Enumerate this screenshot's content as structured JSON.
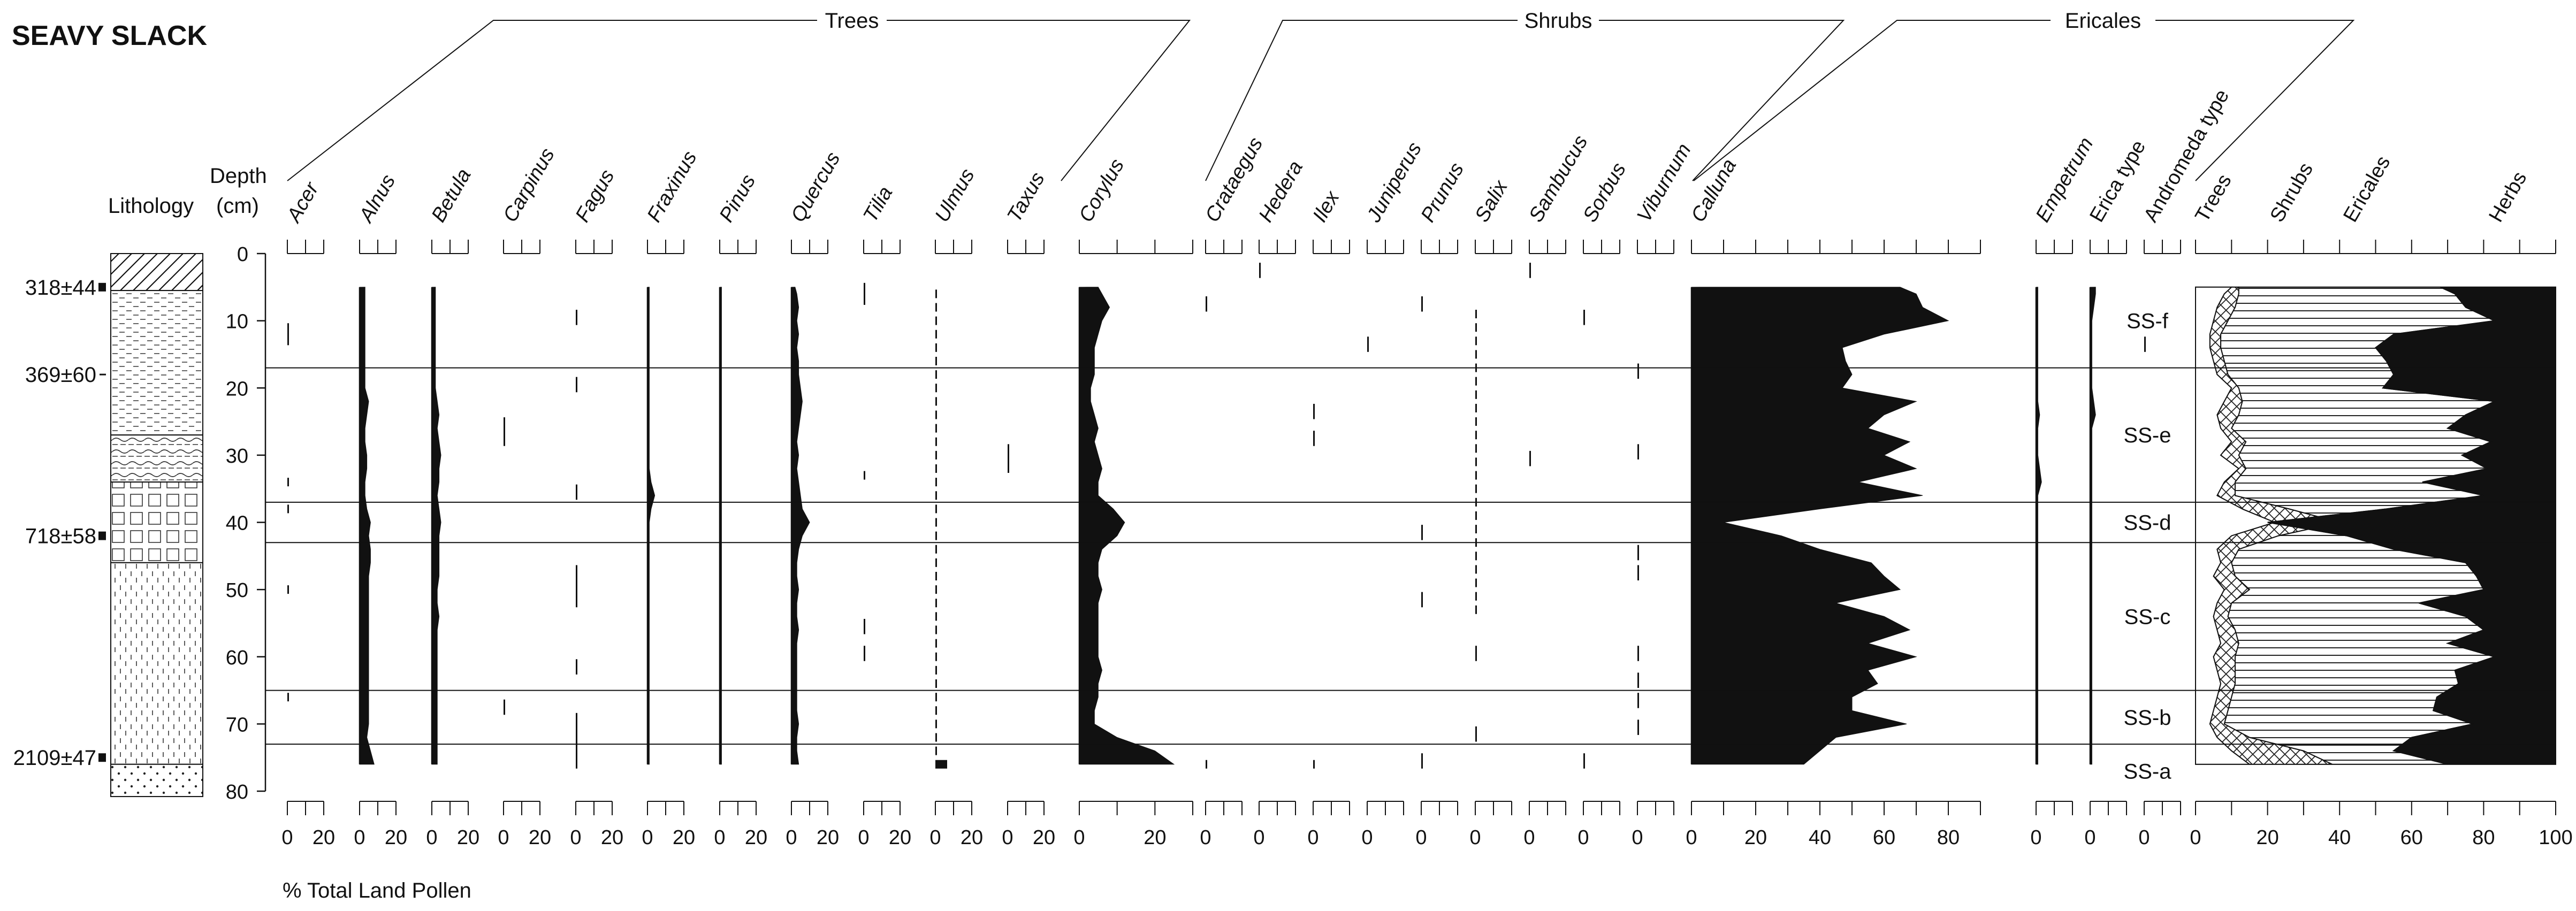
{
  "chart_data": {
    "type": "area",
    "title": "SEAVY SLACK",
    "ylabel": "Depth (cm)",
    "xlabel": "% Total Land Pollen",
    "ylim": [
      0,
      80
    ],
    "depth_ticks": [
      "0",
      "10",
      "20",
      "30",
      "40",
      "50",
      "60",
      "70",
      "80"
    ],
    "lithology_label": "Lithology",
    "depth_label_1": "Depth",
    "depth_label_2": "(cm)",
    "dates": [
      {
        "label": "318±44",
        "depth": 5
      },
      {
        "label": "369±60",
        "depth": 18
      },
      {
        "label": "718±58",
        "depth": 42
      },
      {
        "label": "2109±47",
        "depth": 75
      }
    ],
    "groups": [
      "Trees",
      "Shrubs",
      "Ericales"
    ],
    "zone_boundaries": [
      17,
      37,
      43,
      65,
      73
    ],
    "zones": [
      {
        "label": "SS-f",
        "depth": 10
      },
      {
        "label": "SS-e",
        "depth": 27
      },
      {
        "label": "SS-d",
        "depth": 40
      },
      {
        "label": "SS-c",
        "depth": 54
      },
      {
        "label": "SS-b",
        "depth": 69
      },
      {
        "label": "SS-a",
        "depth": 77
      }
    ],
    "depths": [
      5,
      6,
      8,
      10,
      12,
      14,
      16,
      18,
      20,
      22,
      24,
      26,
      28,
      30,
      32,
      34,
      36,
      38,
      40,
      42,
      44,
      46,
      48,
      50,
      52,
      54,
      56,
      58,
      60,
      62,
      64,
      66,
      68,
      70,
      72,
      74,
      76
    ],
    "taxa": [
      {
        "name": "Acer",
        "type": "dots",
        "points": [
          [
            11,
            1
          ],
          [
            12,
            1
          ],
          [
            13,
            1
          ],
          [
            34,
            1
          ],
          [
            38,
            1
          ],
          [
            50,
            1
          ],
          [
            66,
            1
          ]
        ]
      },
      {
        "name": "Alnus",
        "type": "curve",
        "values": [
          3,
          3,
          3,
          3,
          3,
          3,
          3,
          3,
          3,
          5,
          4,
          3,
          3,
          4,
          4,
          3,
          3,
          4,
          6,
          5,
          6,
          6,
          5,
          5,
          5,
          5,
          5,
          5,
          5,
          5,
          5,
          5,
          5,
          5,
          4,
          6,
          8
        ]
      },
      {
        "name": "Betula",
        "type": "curve",
        "values": [
          2,
          2,
          2,
          2,
          2,
          2,
          2,
          2,
          2,
          3,
          4,
          3,
          4,
          5,
          4,
          4,
          3,
          4,
          5,
          4,
          4,
          4,
          4,
          3,
          3,
          4,
          3,
          3,
          3,
          3,
          3,
          3,
          3,
          3,
          3,
          3,
          3
        ]
      },
      {
        "name": "Carpinus",
        "type": "dots",
        "points": [
          [
            25,
            1
          ],
          [
            26,
            1
          ],
          [
            27,
            1
          ],
          [
            28,
            1
          ],
          [
            67,
            1
          ],
          [
            68,
            1
          ]
        ]
      },
      {
        "name": "Fagus",
        "type": "dots",
        "points": [
          [
            9,
            1
          ],
          [
            10,
            1
          ],
          [
            19,
            1
          ],
          [
            20,
            1
          ],
          [
            35,
            1
          ],
          [
            36,
            1
          ],
          [
            47,
            1
          ],
          [
            48,
            1
          ],
          [
            49,
            1
          ],
          [
            50,
            1
          ],
          [
            51,
            1
          ],
          [
            52,
            1
          ],
          [
            61,
            1
          ],
          [
            62,
            1
          ],
          [
            69,
            1
          ],
          [
            70,
            1
          ],
          [
            71,
            1
          ],
          [
            72,
            1
          ],
          [
            73,
            1
          ],
          [
            74,
            1
          ],
          [
            75,
            1
          ],
          [
            76,
            1
          ]
        ]
      },
      {
        "name": "Fraxinus",
        "type": "curve",
        "values": [
          1,
          1,
          1,
          1,
          1,
          1,
          1,
          1,
          1,
          1,
          1,
          1,
          1,
          1,
          1,
          2,
          4,
          2,
          1,
          1,
          1,
          1,
          1,
          1,
          1,
          1,
          1,
          1,
          1,
          1,
          1,
          1,
          1,
          1,
          1,
          1,
          1
        ]
      },
      {
        "name": "Pinus",
        "type": "curve",
        "values": [
          1,
          1,
          1,
          1,
          1,
          1,
          1,
          1,
          1,
          1,
          1,
          1,
          1,
          1,
          1,
          1,
          1,
          1,
          1,
          1,
          1,
          1,
          1,
          1,
          1,
          1,
          1,
          1,
          1,
          1,
          1,
          1,
          1,
          1,
          1,
          1,
          1
        ]
      },
      {
        "name": "Quercus",
        "type": "curve",
        "values": [
          2,
          3,
          4,
          3,
          4,
          3,
          4,
          4,
          5,
          6,
          5,
          4,
          3,
          4,
          3,
          4,
          5,
          6,
          10,
          6,
          4,
          3,
          3,
          4,
          3,
          3,
          4,
          3,
          3,
          3,
          3,
          3,
          3,
          4,
          3,
          3,
          4
        ]
      },
      {
        "name": "Tilia",
        "type": "dots",
        "points": [
          [
            5,
            1
          ],
          [
            6,
            1
          ],
          [
            7,
            1
          ],
          [
            33,
            1
          ],
          [
            55,
            1
          ],
          [
            56,
            1
          ],
          [
            59,
            1
          ],
          [
            60,
            1
          ]
        ]
      },
      {
        "name": "Ulmus",
        "type": "dots",
        "points": [
          [
            6,
            1
          ],
          [
            8,
            1
          ],
          [
            10,
            1
          ],
          [
            12,
            1
          ],
          [
            14,
            1
          ],
          [
            16,
            1
          ],
          [
            18,
            1
          ],
          [
            20,
            1
          ],
          [
            22,
            1
          ],
          [
            24,
            1
          ],
          [
            26,
            1
          ],
          [
            28,
            1
          ],
          [
            30,
            1
          ],
          [
            32,
            1
          ],
          [
            34,
            1
          ],
          [
            36,
            1
          ],
          [
            38,
            1
          ],
          [
            40,
            1
          ],
          [
            42,
            1
          ],
          [
            44,
            1
          ],
          [
            46,
            1
          ],
          [
            48,
            1
          ],
          [
            50,
            1
          ],
          [
            52,
            1
          ],
          [
            54,
            1
          ],
          [
            56,
            1
          ],
          [
            58,
            1
          ],
          [
            60,
            1
          ],
          [
            62,
            1
          ],
          [
            64,
            1
          ],
          [
            66,
            1
          ],
          [
            68,
            1
          ],
          [
            70,
            1
          ],
          [
            72,
            1
          ],
          [
            74,
            1
          ],
          [
            76,
            3
          ]
        ]
      },
      {
        "name": "Taxus",
        "type": "dots",
        "points": [
          [
            29,
            1
          ],
          [
            30,
            1
          ],
          [
            31,
            1
          ],
          [
            32,
            1
          ]
        ]
      },
      {
        "name": "Corylus",
        "type": "curve",
        "values": [
          5,
          6,
          8,
          6,
          5,
          4,
          4,
          4,
          3,
          3,
          4,
          5,
          4,
          5,
          6,
          5,
          5,
          9,
          12,
          10,
          6,
          5,
          5,
          6,
          5,
          5,
          5,
          5,
          5,
          6,
          5,
          5,
          4,
          4,
          10,
          20,
          25
        ]
      },
      {
        "name": "Crataegus",
        "type": "dots",
        "points": [
          [
            7,
            1
          ],
          [
            8,
            1
          ],
          [
            76,
            1
          ]
        ]
      },
      {
        "name": "Hedera",
        "type": "dots",
        "points": [
          [
            2,
            1
          ],
          [
            3,
            1
          ]
        ]
      },
      {
        "name": "Ilex",
        "type": "dots",
        "points": [
          [
            23,
            1
          ],
          [
            24,
            1
          ],
          [
            27,
            1
          ],
          [
            28,
            1
          ],
          [
            76,
            1
          ]
        ]
      },
      {
        "name": "Juniperus",
        "type": "dots",
        "points": [
          [
            13,
            1
          ],
          [
            14,
            1
          ]
        ]
      },
      {
        "name": "Prunus",
        "type": "dots",
        "points": [
          [
            7,
            1
          ],
          [
            8,
            1
          ],
          [
            41,
            1
          ],
          [
            42,
            1
          ],
          [
            51,
            1
          ],
          [
            52,
            1
          ],
          [
            75,
            1
          ],
          [
            76,
            1
          ]
        ]
      },
      {
        "name": "Salix",
        "type": "dots",
        "points": [
          [
            9,
            1
          ],
          [
            11,
            1
          ],
          [
            13,
            1
          ],
          [
            15,
            1
          ],
          [
            17,
            1
          ],
          [
            19,
            1
          ],
          [
            21,
            1
          ],
          [
            23,
            1
          ],
          [
            25,
            1
          ],
          [
            27,
            1
          ],
          [
            29,
            1
          ],
          [
            31,
            1
          ],
          [
            33,
            1
          ],
          [
            35,
            1
          ],
          [
            37,
            1
          ],
          [
            39,
            1
          ],
          [
            41,
            1
          ],
          [
            43,
            1
          ],
          [
            45,
            1
          ],
          [
            47,
            1
          ],
          [
            49,
            1
          ],
          [
            51,
            1
          ],
          [
            53,
            1
          ],
          [
            59,
            1
          ],
          [
            60,
            1
          ],
          [
            71,
            1
          ],
          [
            72,
            1
          ]
        ]
      },
      {
        "name": "Sambucus",
        "type": "dots",
        "points": [
          [
            2,
            1
          ],
          [
            3,
            1
          ],
          [
            30,
            1
          ],
          [
            31,
            1
          ]
        ]
      },
      {
        "name": "Sorbus",
        "type": "dots",
        "points": [
          [
            9,
            1
          ],
          [
            10,
            1
          ],
          [
            75,
            1
          ],
          [
            76,
            1
          ]
        ]
      },
      {
        "name": "Viburnum",
        "type": "dots",
        "points": [
          [
            17,
            1
          ],
          [
            18,
            1
          ],
          [
            29,
            1
          ],
          [
            30,
            1
          ],
          [
            44,
            1
          ],
          [
            45,
            1
          ],
          [
            47,
            1
          ],
          [
            48,
            1
          ],
          [
            59,
            1
          ],
          [
            60,
            1
          ],
          [
            63,
            1
          ],
          [
            64,
            1
          ],
          [
            66,
            1
          ],
          [
            67,
            1
          ],
          [
            70,
            1
          ],
          [
            71,
            1
          ]
        ]
      },
      {
        "name": "Calluna",
        "type": "curve",
        "values": [
          65,
          70,
          72,
          80,
          60,
          47,
          48,
          50,
          47,
          70,
          60,
          55,
          68,
          60,
          70,
          52,
          72,
          40,
          10,
          28,
          40,
          56,
          60,
          65,
          45,
          60,
          68,
          55,
          70,
          55,
          58,
          50,
          50,
          67,
          45,
          40,
          35
        ]
      },
      {
        "name": "Empetrum",
        "type": "curve",
        "values": [
          1,
          1,
          1,
          1,
          1,
          1,
          1,
          1,
          1,
          1,
          2,
          1,
          1,
          1,
          2,
          3,
          1,
          1,
          1,
          1,
          1,
          1,
          1,
          1,
          1,
          1,
          1,
          1,
          1,
          1,
          1,
          1,
          1,
          1,
          1,
          1,
          1
        ]
      },
      {
        "name": "Erica type",
        "type": "curve",
        "values": [
          3,
          3,
          2,
          1,
          1,
          1,
          1,
          1,
          1,
          2,
          3,
          1,
          1,
          1,
          1,
          1,
          1,
          1,
          1,
          1,
          1,
          1,
          1,
          1,
          1,
          1,
          1,
          1,
          1,
          1,
          1,
          1,
          1,
          1,
          1,
          1,
          1
        ]
      },
      {
        "name": "Andromeda type",
        "type": "dots",
        "points": [
          [
            13,
            1
          ],
          [
            14,
            1
          ]
        ]
      }
    ],
    "summary": {
      "series": [
        "Trees",
        "Shrubs",
        "Ericales",
        "Herbs"
      ],
      "trees": [
        10,
        8,
        6,
        5,
        4,
        4,
        5,
        6,
        10,
        8,
        6,
        7,
        10,
        7,
        12,
        8,
        6,
        13,
        22,
        10,
        6,
        7,
        5,
        8,
        6,
        5,
        6,
        7,
        5,
        6,
        7,
        6,
        5,
        4,
        6,
        10,
        15
      ],
      "shrubs": [
        12,
        12,
        11,
        9,
        7,
        7,
        8,
        9,
        12,
        13,
        12,
        10,
        14,
        12,
        14,
        11,
        11,
        26,
        40,
        23,
        12,
        10,
        11,
        15,
        10,
        9,
        11,
        12,
        11,
        11,
        11,
        10,
        9,
        8,
        15,
        30,
        38
      ],
      "herbs": [
        68,
        72,
        75,
        83,
        55,
        50,
        53,
        55,
        52,
        83,
        75,
        70,
        82,
        74,
        81,
        63,
        80,
        53,
        20,
        42,
        55,
        75,
        78,
        80,
        62,
        75,
        80,
        70,
        83,
        72,
        73,
        67,
        66,
        77,
        60,
        55,
        70
      ]
    },
    "x_ticks_small": [
      "0",
      "20"
    ],
    "x_ticks_calluna": [
      "0",
      "20",
      "40",
      "60",
      "80"
    ],
    "x_ticks_single": [
      "0"
    ],
    "x_ticks_summary": [
      "0",
      "20",
      "40",
      "60",
      "80",
      "100"
    ]
  }
}
